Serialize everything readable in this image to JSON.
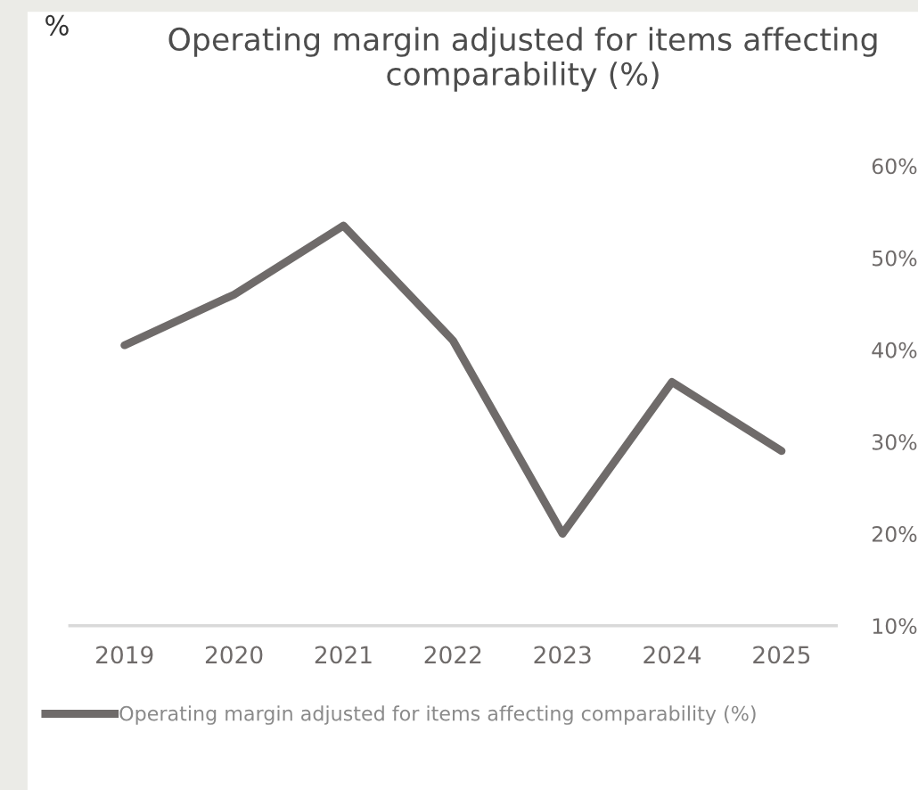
{
  "chart_data": {
    "type": "line",
    "title": "Operating margin adjusted for items affecting comparability (%)",
    "ylabel": "%",
    "categories": [
      "2019",
      "2020",
      "2021",
      "2022",
      "2023",
      "2024",
      "2025"
    ],
    "series": [
      {
        "name": "Operating margin adjusted for items affecting comparability (%)",
        "color": "#6f6b6a",
        "values": [
          40.5,
          46,
          53.5,
          41,
          20,
          36.5,
          29
        ]
      }
    ],
    "ylim": [
      10,
      60
    ],
    "yticks": [
      {
        "value": 10,
        "label": "10%"
      },
      {
        "value": 20,
        "label": "20%"
      },
      {
        "value": 30,
        "label": "30%"
      },
      {
        "value": 40,
        "label": "40%"
      },
      {
        "value": 50,
        "label": "50%"
      },
      {
        "value": 60,
        "label": "60%"
      }
    ],
    "grid": false,
    "legend": "bottom",
    "marker": "none",
    "line_style": "solid"
  }
}
